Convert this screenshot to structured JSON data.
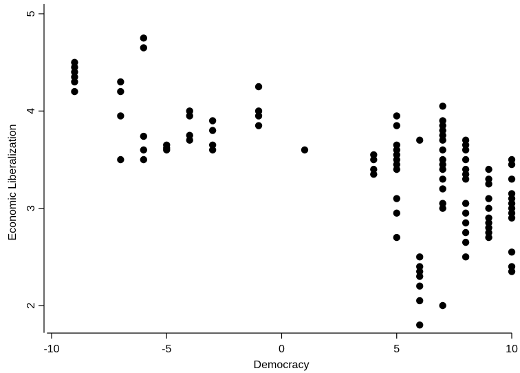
{
  "chart_data": {
    "type": "scatter",
    "title": "",
    "xlabel": "Democracy",
    "ylabel": "Economic Liberalization",
    "xlim": [
      -10.2,
      10
    ],
    "ylim": [
      1.72,
      5.1
    ],
    "xticks": [
      {
        "value": -10,
        "label": "-10"
      },
      {
        "value": -5,
        "label": "-5"
      },
      {
        "value": 0,
        "label": "0"
      },
      {
        "value": 5,
        "label": "5"
      },
      {
        "value": 10,
        "label": "10"
      }
    ],
    "yticks": [
      {
        "value": 2,
        "label": "2"
      },
      {
        "value": 3,
        "label": "3"
      },
      {
        "value": 4,
        "label": "4"
      },
      {
        "value": 5,
        "label": "5"
      }
    ],
    "grid": false,
    "marker_color": "#000000",
    "points": [
      {
        "x": -9,
        "y": 4.5
      },
      {
        "x": -9,
        "y": 4.45
      },
      {
        "x": -9,
        "y": 4.4
      },
      {
        "x": -9,
        "y": 4.35
      },
      {
        "x": -9,
        "y": 4.3
      },
      {
        "x": -9,
        "y": 4.2
      },
      {
        "x": -7,
        "y": 4.3
      },
      {
        "x": -7,
        "y": 4.2
      },
      {
        "x": -7,
        "y": 3.95
      },
      {
        "x": -7,
        "y": 3.5
      },
      {
        "x": -6,
        "y": 4.75
      },
      {
        "x": -6,
        "y": 4.65
      },
      {
        "x": -6,
        "y": 3.74
      },
      {
        "x": -6,
        "y": 3.6
      },
      {
        "x": -6,
        "y": 3.5
      },
      {
        "x": -5,
        "y": 3.65
      },
      {
        "x": -5,
        "y": 3.62
      },
      {
        "x": -5,
        "y": 3.6
      },
      {
        "x": -4,
        "y": 4.0
      },
      {
        "x": -4,
        "y": 3.95
      },
      {
        "x": -4,
        "y": 3.75
      },
      {
        "x": -4,
        "y": 3.7
      },
      {
        "x": -3,
        "y": 3.9
      },
      {
        "x": -3,
        "y": 3.8
      },
      {
        "x": -3,
        "y": 3.65
      },
      {
        "x": -3,
        "y": 3.6
      },
      {
        "x": -1,
        "y": 4.25
      },
      {
        "x": -1,
        "y": 4.0
      },
      {
        "x": -1,
        "y": 3.95
      },
      {
        "x": -1,
        "y": 3.85
      },
      {
        "x": 1,
        "y": 3.6
      },
      {
        "x": 4,
        "y": 3.55
      },
      {
        "x": 4,
        "y": 3.5
      },
      {
        "x": 4,
        "y": 3.4
      },
      {
        "x": 4,
        "y": 3.35
      },
      {
        "x": 5,
        "y": 3.95
      },
      {
        "x": 5,
        "y": 3.85
      },
      {
        "x": 5,
        "y": 3.65
      },
      {
        "x": 5,
        "y": 3.6
      },
      {
        "x": 5,
        "y": 3.55
      },
      {
        "x": 5,
        "y": 3.5
      },
      {
        "x": 5,
        "y": 3.45
      },
      {
        "x": 5,
        "y": 3.4
      },
      {
        "x": 5,
        "y": 3.1
      },
      {
        "x": 5,
        "y": 2.95
      },
      {
        "x": 5,
        "y": 2.7
      },
      {
        "x": 6,
        "y": 3.7
      },
      {
        "x": 6,
        "y": 2.5
      },
      {
        "x": 6,
        "y": 2.4
      },
      {
        "x": 6,
        "y": 2.35
      },
      {
        "x": 6,
        "y": 2.3
      },
      {
        "x": 6,
        "y": 2.2
      },
      {
        "x": 6,
        "y": 2.05
      },
      {
        "x": 6,
        "y": 1.8
      },
      {
        "x": 7,
        "y": 4.05
      },
      {
        "x": 7,
        "y": 3.9
      },
      {
        "x": 7,
        "y": 3.85
      },
      {
        "x": 7,
        "y": 3.8
      },
      {
        "x": 7,
        "y": 3.75
      },
      {
        "x": 7,
        "y": 3.7
      },
      {
        "x": 7,
        "y": 3.6
      },
      {
        "x": 7,
        "y": 3.5
      },
      {
        "x": 7,
        "y": 3.45
      },
      {
        "x": 7,
        "y": 3.4
      },
      {
        "x": 7,
        "y": 3.3
      },
      {
        "x": 7,
        "y": 3.2
      },
      {
        "x": 7,
        "y": 3.05
      },
      {
        "x": 7,
        "y": 3.0
      },
      {
        "x": 7,
        "y": 2.0
      },
      {
        "x": 8,
        "y": 3.7
      },
      {
        "x": 8,
        "y": 3.65
      },
      {
        "x": 8,
        "y": 3.6
      },
      {
        "x": 8,
        "y": 3.5
      },
      {
        "x": 8,
        "y": 3.4
      },
      {
        "x": 8,
        "y": 3.35
      },
      {
        "x": 8,
        "y": 3.3
      },
      {
        "x": 8,
        "y": 3.05
      },
      {
        "x": 8,
        "y": 2.95
      },
      {
        "x": 8,
        "y": 2.85
      },
      {
        "x": 8,
        "y": 2.75
      },
      {
        "x": 8,
        "y": 2.65
      },
      {
        "x": 8,
        "y": 2.5
      },
      {
        "x": 9,
        "y": 3.4
      },
      {
        "x": 9,
        "y": 3.3
      },
      {
        "x": 9,
        "y": 3.25
      },
      {
        "x": 9,
        "y": 3.1
      },
      {
        "x": 9,
        "y": 3.0
      },
      {
        "x": 9,
        "y": 2.9
      },
      {
        "x": 9,
        "y": 2.85
      },
      {
        "x": 9,
        "y": 2.8
      },
      {
        "x": 9,
        "y": 2.75
      },
      {
        "x": 9,
        "y": 2.7
      },
      {
        "x": 10,
        "y": 3.5
      },
      {
        "x": 10,
        "y": 3.45
      },
      {
        "x": 10,
        "y": 3.3
      },
      {
        "x": 10,
        "y": 3.15
      },
      {
        "x": 10,
        "y": 3.1
      },
      {
        "x": 10,
        "y": 3.05
      },
      {
        "x": 10,
        "y": 3.0
      },
      {
        "x": 10,
        "y": 2.95
      },
      {
        "x": 10,
        "y": 2.9
      },
      {
        "x": 10,
        "y": 2.55
      },
      {
        "x": 10,
        "y": 2.4
      },
      {
        "x": 10,
        "y": 2.35
      }
    ]
  }
}
